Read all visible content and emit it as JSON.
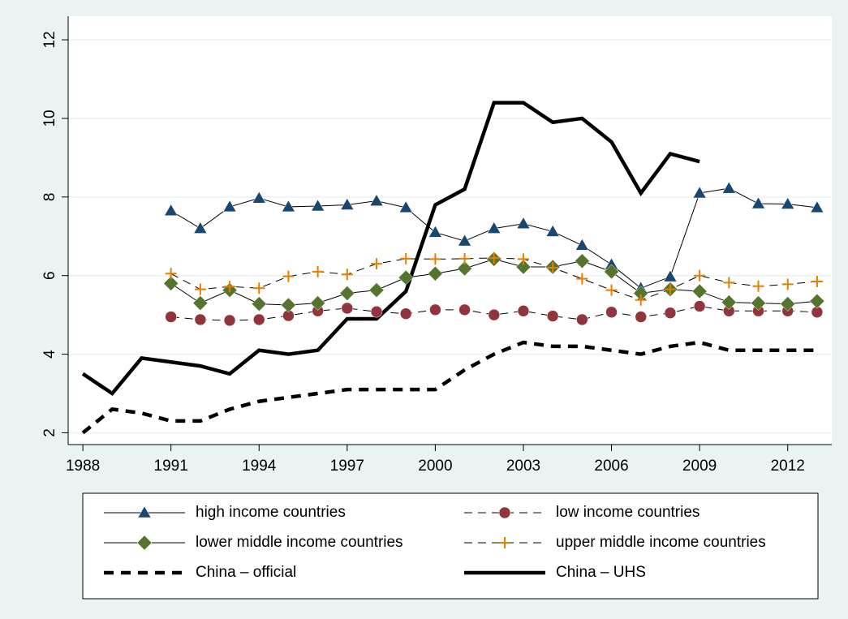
{
  "chart_data": {
    "type": "line",
    "x": [
      1988,
      1989,
      1990,
      1991,
      1992,
      1993,
      1994,
      1995,
      1996,
      1997,
      1998,
      1999,
      2000,
      2001,
      2002,
      2003,
      2004,
      2005,
      2006,
      2007,
      2008,
      2009,
      2010,
      2011,
      2012,
      2013
    ],
    "xlim": [
      1987.5,
      2013.5
    ],
    "xticks": [
      1988,
      1991,
      1994,
      1997,
      2000,
      2003,
      2006,
      2009,
      2012
    ],
    "ylim": [
      1.7,
      12.6
    ],
    "yticks": [
      2,
      4,
      6,
      8,
      10,
      12
    ],
    "grid": true,
    "line_color": "#000000",
    "series": [
      {
        "name": "high income countries",
        "color": "#1a476f",
        "marker": "triangle",
        "dash": "none",
        "width": 1,
        "values": [
          null,
          null,
          null,
          7.65,
          7.2,
          7.75,
          7.97,
          7.75,
          7.77,
          7.8,
          7.9,
          7.73,
          7.1,
          6.88,
          7.2,
          7.32,
          7.12,
          6.77,
          6.28,
          5.68,
          5.97,
          8.1,
          8.22,
          7.83,
          7.82,
          7.73
        ]
      },
      {
        "name": "low income countries",
        "color": "#90353b",
        "marker": "circle",
        "dash": "10 7",
        "width": 1,
        "values": [
          null,
          null,
          null,
          4.95,
          4.88,
          4.86,
          4.88,
          4.98,
          5.1,
          5.17,
          5.08,
          5.03,
          5.13,
          5.13,
          5.0,
          5.1,
          4.97,
          4.88,
          5.07,
          4.95,
          5.05,
          5.22,
          5.1,
          5.1,
          5.1,
          5.07
        ]
      },
      {
        "name": "lower middle income countries",
        "color": "#55752f",
        "marker": "diamond",
        "dash": "none",
        "width": 1,
        "values": [
          null,
          null,
          null,
          5.8,
          5.3,
          5.63,
          5.28,
          5.25,
          5.3,
          5.55,
          5.63,
          5.95,
          6.05,
          6.18,
          6.42,
          6.22,
          6.22,
          6.37,
          6.1,
          5.55,
          5.65,
          5.6,
          5.32,
          5.3,
          5.28,
          5.35
        ]
      },
      {
        "name": "upper middle income countries",
        "color": "#e37e00",
        "marker": "plus",
        "dash": "10 7",
        "width": 1,
        "values": [
          null,
          null,
          null,
          6.05,
          5.65,
          5.72,
          5.68,
          5.98,
          6.1,
          6.03,
          6.3,
          6.43,
          6.42,
          6.43,
          6.45,
          6.42,
          6.2,
          5.92,
          5.63,
          5.38,
          5.65,
          6.0,
          5.82,
          5.73,
          5.78,
          5.85
        ]
      },
      {
        "name": "China – official",
        "color": "#000000",
        "marker": "none",
        "dash": "12 9",
        "width": 4.5,
        "values": [
          2.0,
          2.6,
          2.5,
          2.3,
          2.3,
          2.6,
          2.8,
          2.9,
          3.0,
          3.1,
          3.1,
          3.1,
          3.1,
          3.6,
          4.0,
          4.3,
          4.2,
          4.2,
          4.1,
          4.0,
          4.2,
          4.3,
          4.1,
          4.1,
          4.1,
          4.1
        ]
      },
      {
        "name": "China – UHS",
        "color": "#000000",
        "marker": "none",
        "dash": "none",
        "width": 4.5,
        "values": [
          3.5,
          3.0,
          3.9,
          3.8,
          3.7,
          3.5,
          4.1,
          4.0,
          4.1,
          4.9,
          4.9,
          5.6,
          7.8,
          8.2,
          10.4,
          10.4,
          9.9,
          10.0,
          9.4,
          8.1,
          9.1,
          8.9,
          null,
          null,
          null,
          null
        ]
      }
    ]
  }
}
